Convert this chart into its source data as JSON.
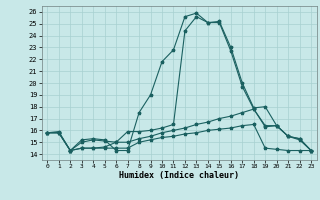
{
  "xlabel": "Humidex (Indice chaleur)",
  "bg_color": "#c8e8e8",
  "grid_color": "#a8d0d0",
  "line_color": "#1a6060",
  "xlim": [
    -0.5,
    23.5
  ],
  "ylim": [
    13.5,
    26.5
  ],
  "xticks": [
    0,
    1,
    2,
    3,
    4,
    5,
    6,
    7,
    8,
    9,
    10,
    11,
    12,
    13,
    14,
    15,
    16,
    17,
    18,
    19,
    20,
    21,
    22,
    23
  ],
  "yticks": [
    14,
    15,
    16,
    17,
    18,
    19,
    20,
    21,
    22,
    23,
    24,
    25,
    26
  ],
  "series": [
    {
      "x": [
        0,
        1,
        2,
        3,
        4,
        5,
        6,
        7,
        8,
        9,
        10,
        11,
        12,
        13,
        14,
        15,
        16,
        17,
        18,
        19,
        20,
        21,
        22,
        23
      ],
      "y": [
        15.8,
        15.9,
        14.3,
        15.2,
        15.3,
        15.2,
        14.3,
        14.3,
        17.5,
        19.0,
        21.8,
        22.8,
        25.6,
        25.9,
        25.1,
        25.2,
        23.0,
        20.0,
        17.9,
        18.0,
        16.4,
        15.5,
        15.3,
        14.3
      ]
    },
    {
      "x": [
        0,
        1,
        2,
        3,
        4,
        5,
        6,
        7,
        8,
        9,
        10,
        11,
        12,
        13,
        14,
        15,
        16,
        17,
        18,
        19,
        20,
        21,
        22,
        23
      ],
      "y": [
        15.8,
        15.8,
        14.3,
        15.0,
        15.2,
        15.1,
        15.0,
        15.9,
        15.9,
        16.0,
        16.2,
        16.5,
        24.4,
        25.6,
        25.1,
        25.1,
        22.7,
        19.7,
        17.8,
        16.4,
        16.4,
        15.5,
        15.2,
        14.3
      ]
    },
    {
      "x": [
        0,
        1,
        2,
        3,
        4,
        5,
        6,
        7,
        8,
        9,
        10,
        11,
        12,
        13,
        14,
        15,
        16,
        17,
        18,
        19,
        20,
        21,
        22,
        23
      ],
      "y": [
        15.8,
        15.8,
        14.3,
        14.5,
        14.5,
        14.6,
        15.0,
        15.0,
        15.3,
        15.5,
        15.8,
        16.0,
        16.2,
        16.5,
        16.7,
        17.0,
        17.2,
        17.5,
        17.8,
        16.3,
        16.4,
        15.5,
        15.3,
        14.3
      ]
    },
    {
      "x": [
        0,
        1,
        2,
        3,
        4,
        5,
        6,
        7,
        8,
        9,
        10,
        11,
        12,
        13,
        14,
        15,
        16,
        17,
        18,
        19,
        20,
        21,
        22,
        23
      ],
      "y": [
        15.8,
        15.8,
        14.3,
        14.5,
        14.5,
        14.5,
        14.5,
        14.5,
        15.0,
        15.2,
        15.4,
        15.5,
        15.7,
        15.8,
        16.0,
        16.1,
        16.2,
        16.4,
        16.5,
        14.5,
        14.4,
        14.3,
        14.3,
        14.3
      ]
    }
  ]
}
